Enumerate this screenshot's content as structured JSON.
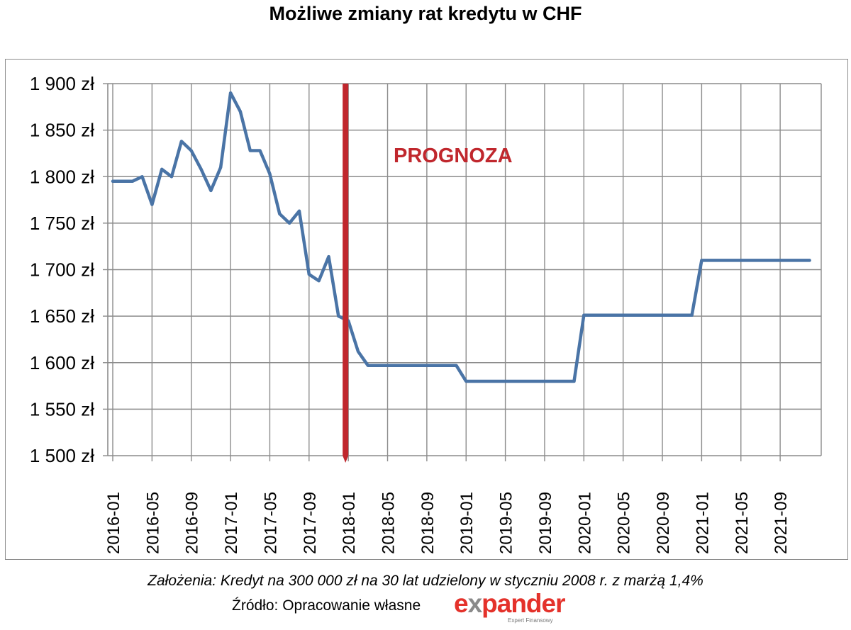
{
  "chart_data": {
    "type": "line",
    "title": "Możliwe zmiany rat kredytu w CHF",
    "y_tick_labels": [
      "1 500 zł",
      "1 550 zł",
      "1 600 zł",
      "1 650 zł",
      "1 700 zł",
      "1 750 zł",
      "1 800 zł",
      "1 850 zł",
      "1 900 zł"
    ],
    "y_ticks": [
      1500,
      1550,
      1600,
      1650,
      1700,
      1750,
      1800,
      1850,
      1900
    ],
    "ylim": [
      1500,
      1900
    ],
    "x_tick_labels": [
      "2016-01",
      "2016-05",
      "2016-09",
      "2017-01",
      "2017-05",
      "2017-09",
      "2018-01",
      "2018-05",
      "2018-09",
      "2019-01",
      "2019-05",
      "2019-09",
      "2020-01",
      "2020-05",
      "2020-09",
      "2021-01",
      "2021-05",
      "2021-09"
    ],
    "xlim": [
      "2016-01",
      "2021-12"
    ],
    "grid": true,
    "annotation": {
      "text": "PROGNOZA",
      "color": "#c0272d",
      "at": "2018-01"
    },
    "series": [
      {
        "color": "#4a74a6",
        "points": [
          [
            "2016-01",
            1795
          ],
          [
            "2016-02",
            1795
          ],
          [
            "2016-03",
            1795
          ],
          [
            "2016-04",
            1800
          ],
          [
            "2016-05",
            1770
          ],
          [
            "2016-06",
            1808
          ],
          [
            "2016-07",
            1800
          ],
          [
            "2016-08",
            1838
          ],
          [
            "2016-09",
            1828
          ],
          [
            "2016-10",
            1808
          ],
          [
            "2016-11",
            1785
          ],
          [
            "2016-12",
            1810
          ],
          [
            "2017-01",
            1890
          ],
          [
            "2017-02",
            1870
          ],
          [
            "2017-03",
            1828
          ],
          [
            "2017-04",
            1828
          ],
          [
            "2017-05",
            1803
          ],
          [
            "2017-06",
            1760
          ],
          [
            "2017-07",
            1750
          ],
          [
            "2017-08",
            1763
          ],
          [
            "2017-09",
            1695
          ],
          [
            "2017-10",
            1688
          ],
          [
            "2017-11",
            1714
          ],
          [
            "2017-12",
            1650
          ],
          [
            "2018-01",
            1645
          ],
          [
            "2018-02",
            1612
          ],
          [
            "2018-03",
            1597
          ],
          [
            "2018-04",
            1597
          ],
          [
            "2018-05",
            1597
          ],
          [
            "2018-06",
            1597
          ],
          [
            "2018-07",
            1597
          ],
          [
            "2018-08",
            1597
          ],
          [
            "2018-09",
            1597
          ],
          [
            "2018-10",
            1597
          ],
          [
            "2018-11",
            1597
          ],
          [
            "2018-12",
            1597
          ],
          [
            "2019-01",
            1580
          ],
          [
            "2019-02",
            1580
          ],
          [
            "2019-03",
            1580
          ],
          [
            "2019-04",
            1580
          ],
          [
            "2019-05",
            1580
          ],
          [
            "2019-06",
            1580
          ],
          [
            "2019-07",
            1580
          ],
          [
            "2019-08",
            1580
          ],
          [
            "2019-09",
            1580
          ],
          [
            "2019-10",
            1580
          ],
          [
            "2019-11",
            1580
          ],
          [
            "2019-12",
            1580
          ],
          [
            "2020-01",
            1651
          ],
          [
            "2020-02",
            1651
          ],
          [
            "2020-03",
            1651
          ],
          [
            "2020-04",
            1651
          ],
          [
            "2020-05",
            1651
          ],
          [
            "2020-06",
            1651
          ],
          [
            "2020-07",
            1651
          ],
          [
            "2020-08",
            1651
          ],
          [
            "2020-09",
            1651
          ],
          [
            "2020-10",
            1651
          ],
          [
            "2020-11",
            1651
          ],
          [
            "2020-12",
            1651
          ],
          [
            "2021-01",
            1710
          ],
          [
            "2021-02",
            1710
          ],
          [
            "2021-03",
            1710
          ],
          [
            "2021-04",
            1710
          ],
          [
            "2021-05",
            1710
          ],
          [
            "2021-06",
            1710
          ],
          [
            "2021-07",
            1710
          ],
          [
            "2021-08",
            1710
          ],
          [
            "2021-09",
            1710
          ],
          [
            "2021-10",
            1710
          ],
          [
            "2021-11",
            1710
          ],
          [
            "2021-12",
            1710
          ]
        ]
      }
    ]
  },
  "footer": {
    "assumptions": "Założenia: Kredyt na 300 000 zł na 30 lat udzielony w styczniu 2008 r. z marżą 1,4%",
    "source": "Źródło: Opracowanie własne"
  },
  "logo": {
    "brand": "expander",
    "tagline": "Expert Finansowy",
    "colors": {
      "primary": "#e4322b",
      "secondary": "#8a8a8a"
    }
  }
}
